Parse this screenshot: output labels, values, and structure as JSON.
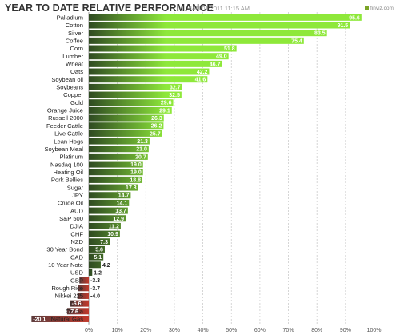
{
  "header": {
    "title": "YEAR TO DATE RELATIVE PERFORMANCE",
    "timestamp": "JAN 01 2011 11:15 AM",
    "brand": "finviz.com"
  },
  "colors": {
    "positive_light": "#8ee83a",
    "positive_dark": "#2f4a22",
    "negative_light": "#5c3a3a",
    "negative_dark": "#c0392b",
    "grid": "#cccccc"
  },
  "chart_data": {
    "type": "bar",
    "orientation": "horizontal",
    "title": "YEAR TO DATE RELATIVE PERFORMANCE",
    "categories": [
      "Palladium",
      "Cotton",
      "Silver",
      "Coffee",
      "Corn",
      "Lumber",
      "Wheat",
      "Oats",
      "Soybean oil",
      "Soybeans",
      "Copper",
      "Gold",
      "Orange Juice",
      "Russell 2000",
      "Feeder Cattle",
      "Live Cattle",
      "Lean Hogs",
      "Soybean Meal",
      "Platinum",
      "Nasdaq 100",
      "Heating Oil",
      "Pork Bellies",
      "Sugar",
      "JPY",
      "Crude Oil",
      "AUD",
      "S&P 500",
      "DJIA",
      "CHF",
      "NZD",
      "30 Year Bond",
      "CAD",
      "10 Year Note",
      "USD",
      "GBP",
      "Rough Rice",
      "Nikkei 225",
      "EUR",
      "Cocoa",
      "Natural Gas"
    ],
    "values": [
      95.6,
      91.5,
      83.5,
      75.4,
      51.8,
      49.0,
      46.7,
      42.2,
      41.6,
      32.7,
      32.5,
      29.6,
      29.1,
      26.3,
      26.2,
      25.7,
      21.3,
      21.0,
      20.7,
      19.0,
      19.0,
      18.8,
      17.3,
      14.7,
      14.1,
      13.7,
      12.9,
      11.2,
      10.9,
      7.3,
      5.6,
      5.1,
      4.2,
      1.2,
      -3.3,
      -3.7,
      -4.0,
      -6.6,
      -7.6,
      -20.1
    ],
    "value_labels": [
      "95.6",
      "91.5",
      "83.5",
      "75.4",
      "51.8",
      "49.0",
      "46.7",
      "42.2",
      "41.6",
      "32.7",
      "32.5",
      "29.6",
      "29.1",
      "26.3",
      "26.2",
      "25.7",
      "21.3",
      "21.0",
      "20.7",
      "19.0",
      "19.0",
      "18.8",
      "17.3",
      "14.7",
      "14.1",
      "13.7",
      "12.9",
      "11.2",
      "10.9",
      "7.3",
      "5.6",
      "5.1",
      "4.2",
      "1.2",
      "-3.3",
      "-3.7",
      "-4.0",
      "-6.6",
      "-7.6",
      "-20.1"
    ],
    "x_ticks": [
      0,
      10,
      20,
      30,
      40,
      50,
      60,
      70,
      80,
      90,
      100
    ],
    "x_tick_labels": [
      "0%",
      "10%",
      "20%",
      "30%",
      "40%",
      "50%",
      "60%",
      "70%",
      "80%",
      "90%",
      "100%"
    ],
    "xlim": [
      -20.1,
      100
    ],
    "grid": true
  }
}
